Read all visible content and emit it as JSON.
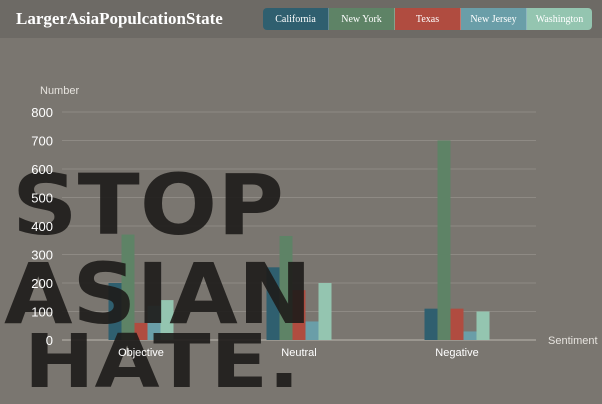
{
  "header": {
    "title": "LargerAsiaPopulcationState"
  },
  "poster": {
    "lines": [
      "STOP",
      "ASIAN",
      "HATE."
    ]
  },
  "colors": {
    "background": "#7a7670",
    "header": "#6d6a65",
    "grid": "#8e8a84",
    "text": "#ffffff",
    "poster_text": "#1e1c1a"
  },
  "chart_data": {
    "type": "bar",
    "title": "",
    "xlabel": "Sentiment",
    "ylabel": "Number",
    "ylim": [
      0,
      800
    ],
    "yticks": [
      0,
      100,
      200,
      300,
      400,
      500,
      600,
      700,
      800
    ],
    "categories": [
      "Objective",
      "Neutral",
      "Negative"
    ],
    "grid": true,
    "legend_position": "top-right",
    "series": [
      {
        "name": "California",
        "color": "#2f5f6f",
        "values": [
          200,
          255,
          110
        ]
      },
      {
        "name": "New York",
        "color": "#5e8366",
        "values": [
          370,
          365,
          700
        ]
      },
      {
        "name": "Texas",
        "color": "#b04c40",
        "values": [
          60,
          175,
          110
        ]
      },
      {
        "name": "New Jersey",
        "color": "#6a9ea8",
        "values": [
          120,
          65,
          30
        ]
      },
      {
        "name": "Washington",
        "color": "#94c5b0",
        "values": [
          140,
          200,
          100
        ]
      }
    ]
  }
}
